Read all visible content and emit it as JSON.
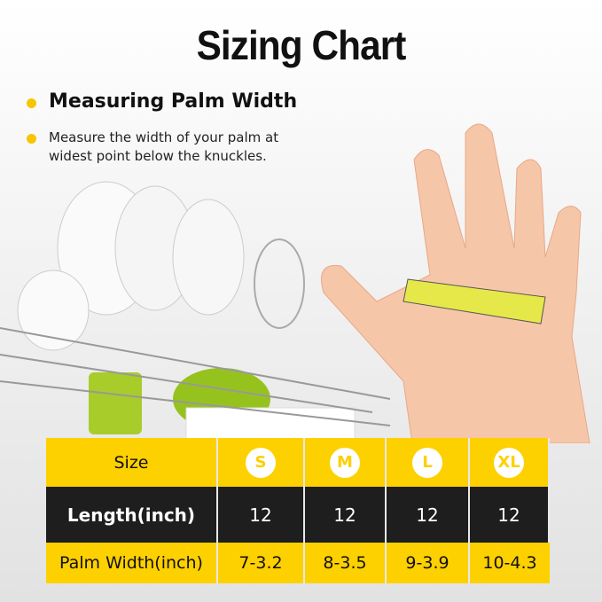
{
  "title": "Sizing Chart",
  "heading": "Measuring Palm Width",
  "description": "Measure the width of your palm at widest point below the knuckles.",
  "colors": {
    "accent": "#fdd000",
    "dark": "#1e1e1e"
  },
  "table": {
    "header": [
      "Size",
      "S",
      "M",
      "L",
      "XL"
    ],
    "rows": [
      {
        "label": "Length(inch)",
        "values": [
          "12",
          "12",
          "12",
          "12"
        ]
      },
      {
        "label": "Palm Width(inch)",
        "values": [
          "7-3.2",
          "8-3.5",
          "9-3.9",
          "10-4.3"
        ]
      }
    ]
  }
}
